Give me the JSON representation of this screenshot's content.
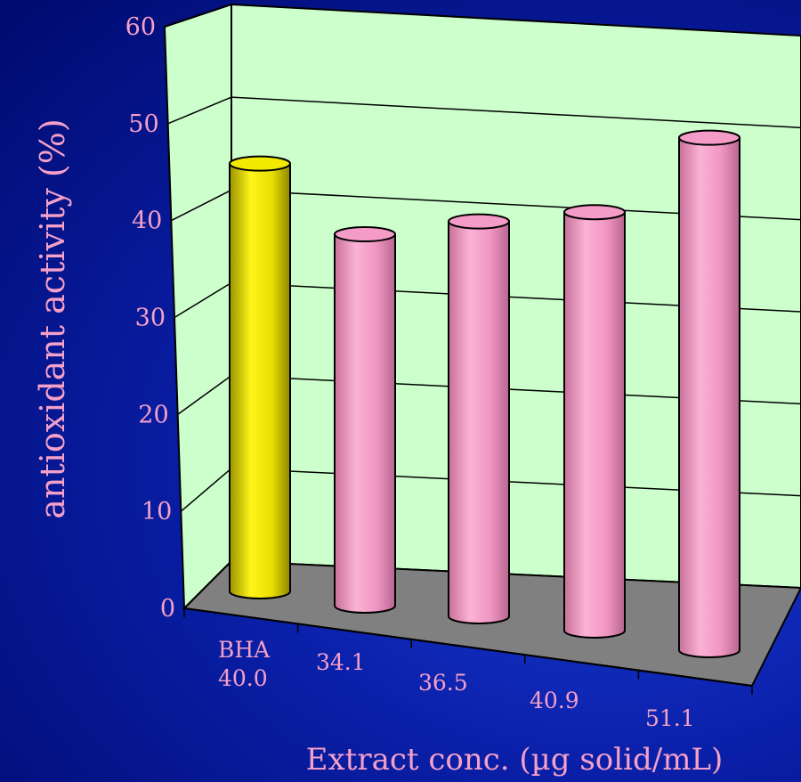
{
  "chart_data": {
    "type": "bar",
    "style": "3d-cylinder",
    "categories": [
      "BHA\n40.0",
      "34.1",
      "36.5",
      "40.9",
      "51.1"
    ],
    "values": [
      45.5,
      39.5,
      42.0,
      44.5,
      54.5
    ],
    "bar_colors": [
      "#f2ea00",
      "#f49cc7",
      "#f49cc7",
      "#f49cc7",
      "#f49cc7"
    ],
    "xlabel": "Extract conc. (µg solid/mL)",
    "ylabel": "antioxidant activity (%)",
    "ylim": [
      0,
      60
    ],
    "yticks": [
      "0",
      "10",
      "20",
      "30",
      "40",
      "50",
      "60"
    ],
    "grid": true
  },
  "colors": {
    "background": "#0a1fa8",
    "plot_wall": "#ccffcc",
    "floor": "#808080",
    "text": "#f5a0c8"
  }
}
